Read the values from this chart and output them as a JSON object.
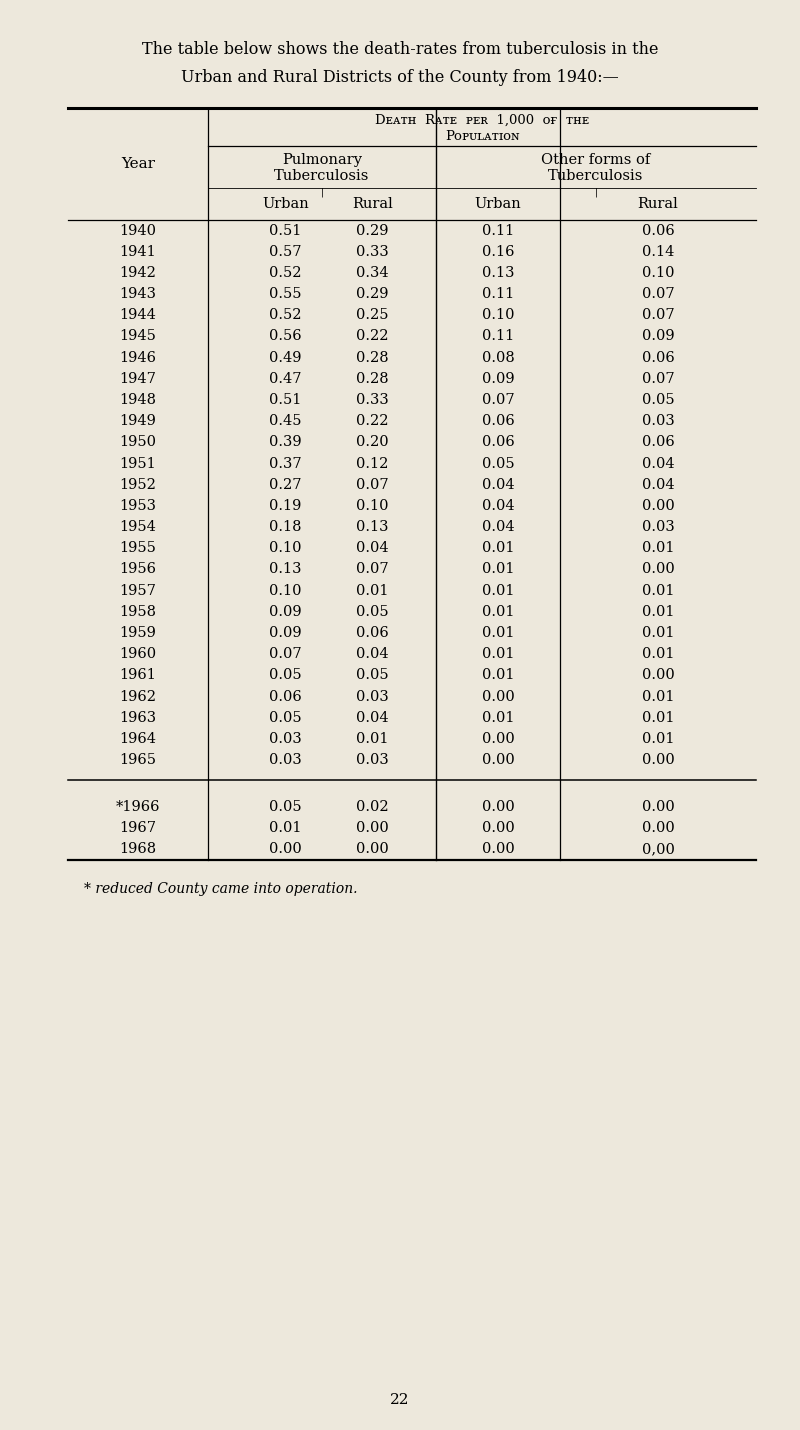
{
  "title_line1": "The table below shows the death-rates from tuberculosis in the",
  "title_line2": "Urban and Rural Districts of the County from 1940:—",
  "header_line1": "Death Rate per 1,000 of the",
  "header_line2": "Population",
  "col_group1": "Pulmonary",
  "col_group1b": "Tuberculosis",
  "col_group2": "Other forms of",
  "col_group2b": "Tuberculosis",
  "col_year": "Year",
  "col_urban": "Urban",
  "col_rural": "Rural",
  "footnote": "* reduced County came into operation.",
  "page_num": "22",
  "bg_color": "#ede8dc",
  "years": [
    "1940",
    "1941",
    "1942",
    "1943",
    "1944",
    "1945",
    "1946",
    "1947",
    "1948",
    "1949",
    "1950",
    "1951",
    "1952",
    "1953",
    "1954",
    "1955",
    "1956",
    "1957",
    "1958",
    "1959",
    "1960",
    "1961",
    "1962",
    "1963",
    "1964",
    "1965"
  ],
  "years_sep": [
    "*1966",
    "1967",
    "1968"
  ],
  "pulm_urban": [
    0.51,
    0.57,
    0.52,
    0.55,
    0.52,
    0.56,
    0.49,
    0.47,
    0.51,
    0.45,
    0.39,
    0.37,
    0.27,
    0.19,
    0.18,
    0.1,
    0.13,
    0.1,
    0.09,
    0.09,
    0.07,
    0.05,
    0.06,
    0.05,
    0.03,
    0.03
  ],
  "pulm_rural": [
    0.29,
    0.33,
    0.34,
    0.29,
    0.25,
    0.22,
    0.28,
    0.28,
    0.33,
    0.22,
    0.2,
    0.12,
    0.07,
    0.1,
    0.13,
    0.04,
    0.07,
    0.01,
    0.05,
    0.06,
    0.04,
    0.05,
    0.03,
    0.04,
    0.01,
    0.03
  ],
  "other_urban": [
    0.11,
    0.16,
    0.13,
    0.11,
    0.1,
    0.11,
    0.08,
    0.09,
    0.07,
    0.06,
    0.06,
    0.05,
    0.04,
    0.04,
    0.04,
    0.01,
    0.01,
    0.01,
    0.01,
    0.01,
    0.01,
    0.01,
    0.0,
    0.01,
    0.0,
    0.0
  ],
  "other_rural": [
    0.06,
    0.14,
    0.1,
    0.07,
    0.07,
    0.09,
    0.06,
    0.07,
    0.05,
    0.03,
    0.06,
    0.04,
    0.04,
    0.0,
    0.03,
    0.01,
    0.0,
    0.01,
    0.01,
    0.01,
    0.01,
    0.0,
    0.01,
    0.01,
    0.01,
    0.0
  ],
  "pulm_urban_sep": [
    0.05,
    0.01,
    0.0
  ],
  "pulm_rural_sep": [
    0.02,
    0.0,
    0.0
  ],
  "other_urban_sep": [
    0.0,
    0.0,
    0.0
  ],
  "other_rural_sep_str": [
    "0.00",
    "0.00",
    "0,00"
  ]
}
